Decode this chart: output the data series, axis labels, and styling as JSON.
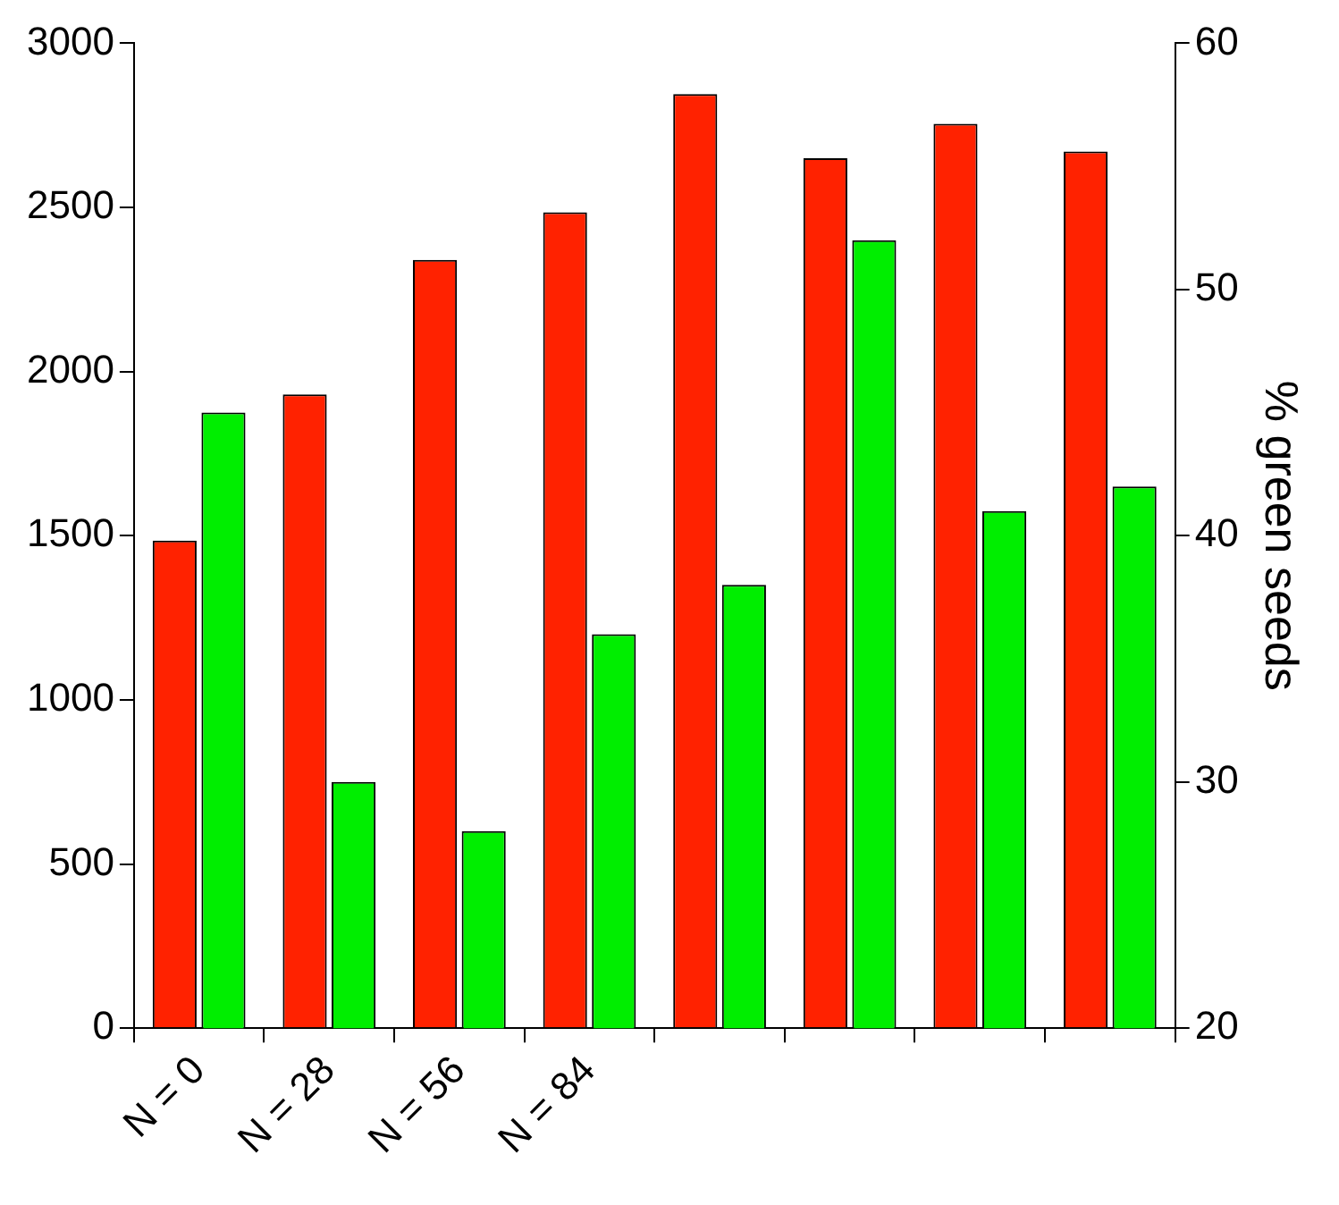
{
  "chart_data": {
    "type": "bar",
    "y2label": "% green seeds",
    "categories": [
      "N = 0",
      "N = 28",
      "N = 56",
      "N = 84",
      null,
      null,
      null,
      null
    ],
    "series": [
      {
        "color": "#ff2200",
        "values": [
          1485,
          1930,
          2340,
          2485,
          2845,
          2650,
          2755,
          2670
        ]
      },
      {
        "color": "#00ee00",
        "axis": "y2",
        "values": [
          45,
          30,
          28,
          36,
          38,
          52,
          41,
          42
        ]
      }
    ],
    "ylim": [
      0,
      3000
    ],
    "yticks": [
      0,
      500,
      1000,
      1500,
      2000,
      2500,
      3000
    ],
    "y2lim": [
      20,
      60
    ],
    "y2ticks": [
      20,
      30,
      40,
      50,
      60
    ],
    "grid": false,
    "legend": false
  }
}
